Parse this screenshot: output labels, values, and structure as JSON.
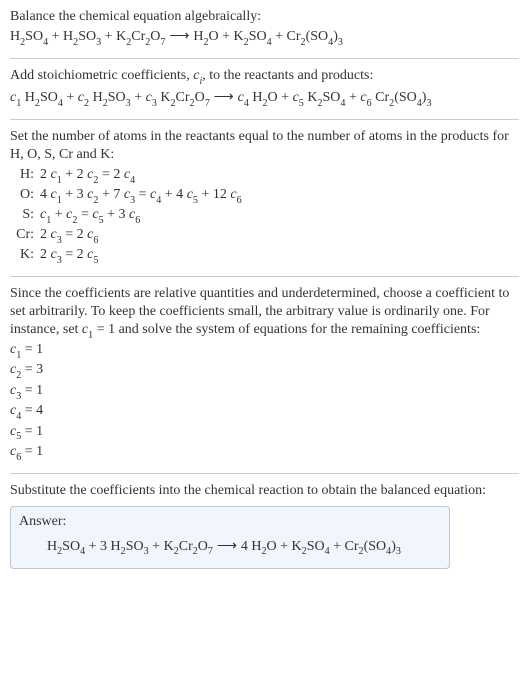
{
  "intro": {
    "line1": "Balance the chemical equation algebraically:"
  },
  "eq1": {
    "H2SO4": "H",
    "H2SO4_sub1": "2",
    "H2SO4_s": "SO",
    "H2SO4_sub2": "4",
    "plus1": " + ",
    "H2SO3": "H",
    "H2SO3_sub1": "2",
    "H2SO3_s": "SO",
    "H2SO3_sub2": "3",
    "plus2": " + ",
    "K2": "K",
    "K2_sub": "2",
    "Cr2": "Cr",
    "Cr2_sub": "2",
    "O7": "O",
    "O7_sub": "7",
    "arrow": " ⟶ ",
    "H2O": "H",
    "H2O_sub": "2",
    "H2O_o": "O",
    "plus3": " + ",
    "K2b": "K",
    "K2b_sub": "2",
    "SO4b": "SO",
    "SO4b_sub": "4",
    "plus4": " + ",
    "Cr2b": "Cr",
    "Cr2b_sub": "2",
    "lp": "(SO",
    "SO4c_sub": "4",
    "rp": ")",
    "three_sub": "3"
  },
  "addstoich": {
    "t1": "Add stoichiometric coefficients, ",
    "ci": "c",
    "ci_sub": "i",
    "t2": ", to the reactants and products:"
  },
  "eq2": {
    "c1": "c",
    "c1s": "1",
    "sp1": " ",
    "c2": "c",
    "c2s": "2",
    "sp2": " ",
    "c3": "c",
    "c3s": "3",
    "sp3": " ",
    "c4": "c",
    "c4s": "4",
    "sp4": " ",
    "c5": "c",
    "c5s": "5",
    "sp5": " ",
    "c6": "c",
    "c6s": "6",
    "sp6": " "
  },
  "setnum": {
    "t1": "Set the number of atoms in the reactants equal to the number of atoms in the products for H, O, S, Cr and K:"
  },
  "atoms": {
    "H": {
      "lbl": "H:",
      "eq_a": "2 ",
      "c1": "c",
      "s1": "1",
      "p1": " + 2 ",
      "c2": "c",
      "s2": "2",
      "eq": " = 2 ",
      "c4": "c",
      "s4": "4"
    },
    "O": {
      "lbl": "O:",
      "a": "4 ",
      "c1": "c",
      "s1": "1",
      " p1": " + 3 ",
      "c2": "c",
      "s2": "2",
      " p2": " + 7 ",
      "c3": "c",
      "s3": "3",
      " eq": " = ",
      "c4": "c",
      "s4": "4",
      " p3": " + 4 ",
      "c5": "c",
      "s5": "5",
      " p4": " + 12 ",
      "c6": "c",
      "s6": "6"
    },
    "S": {
      "lbl": "S:",
      "c1": "c",
      "s1": "1",
      " p1": " + ",
      "c2": "c",
      "s2": "2",
      " eq": " = ",
      "c5": "c",
      "s5": "5",
      " p2": " + 3 ",
      "c6": "c",
      "s6": "6"
    },
    "Cr": {
      "lbl": "Cr:",
      "a": "2 ",
      "c3": "c",
      "s3": "3",
      " eq": " = 2 ",
      "c6": "c",
      "s6": "6"
    },
    "K": {
      "lbl": "K:",
      "a": "2 ",
      "c3": "c",
      "s3": "3",
      " eq": " = 2 ",
      "c5": "c",
      "s5": "5"
    }
  },
  "since": {
    "t1": "Since the coefficients are relative quantities and underdetermined, choose a coefficient to set arbitrarily. To keep the coefficients small, the arbitrary value is ordinarily one. For instance, set ",
    "c": "c",
    "s": "1",
    "t2": " = 1 and solve the system of equations for the remaining coefficients:"
  },
  "coeffs": {
    "r1": {
      "c": "c",
      "s": "1",
      "v": " = 1"
    },
    "r2": {
      "c": "c",
      "s": "2",
      "v": " = 3"
    },
    "r3": {
      "c": "c",
      "s": "3",
      "v": " = 1"
    },
    "r4": {
      "c": "c",
      "s": "4",
      "v": " = 4"
    },
    "r5": {
      "c": "c",
      "s": "5",
      "v": " = 1"
    },
    "r6": {
      "c": "c",
      "s": "6",
      "v": " = 1"
    }
  },
  "substitute": {
    "t": "Substitute the coefficients into the chemical reaction to obtain the balanced equation:"
  },
  "answer": {
    "label": "Answer:",
    "pre": "",
    "plus": " + ",
    "three": "3 ",
    "arrow": " ⟶ ",
    "four": "4 "
  }
}
